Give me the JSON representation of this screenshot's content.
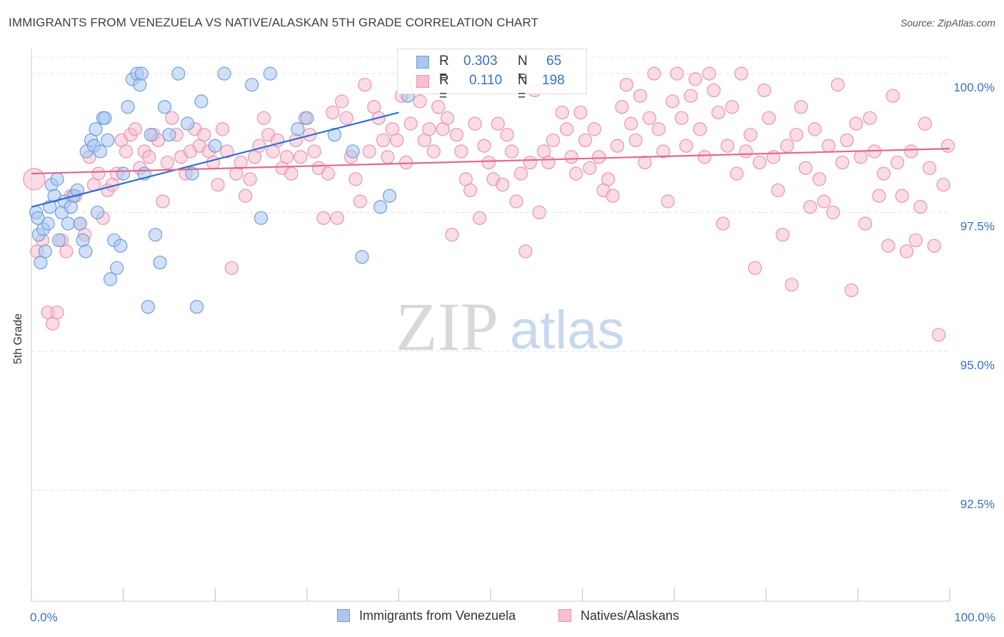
{
  "title": "IMMIGRANTS FROM VENEZUELA VS NATIVE/ALASKAN 5TH GRADE CORRELATION CHART",
  "source": "Source: ZipAtlas.com",
  "watermark": {
    "part1": "ZIP",
    "part2": "atlas"
  },
  "legend": {
    "r_label": "R =",
    "n_label": "N =",
    "rows": [
      {
        "r": "0.303",
        "n": "65"
      },
      {
        "r": "0.110",
        "n": "198"
      }
    ]
  },
  "colors": {
    "blue_fill": "#a9c7ef",
    "blue_stroke": "#6f9ee0",
    "blue_line": "#2f6fd0",
    "pink_fill": "#f6c0d0",
    "pink_stroke": "#ec92b0",
    "pink_line": "#e2698f",
    "tick_text": "#3a6fca"
  },
  "chart_data": {
    "type": "scatter",
    "title": "IMMIGRANTS FROM VENEZUELA VS NATIVE/ALASKAN 5TH GRADE CORRELATION CHART",
    "xlabel": "",
    "ylabel": "5th Grade",
    "xlim": [
      0,
      100
    ],
    "ylim": [
      90.5,
      100.4
    ],
    "x_tick_labels": [
      "0.0%",
      "100.0%"
    ],
    "y_ticks": [
      92.5,
      95.0,
      97.5,
      100.0
    ],
    "y_tick_labels": [
      "92.5%",
      "95.0%",
      "97.5%",
      "100.0%"
    ],
    "grid": true,
    "legend_position": "bottom",
    "series": [
      {
        "name": "Immigrants from Venezuela",
        "color": "#6f9ee0",
        "trend": {
          "x": [
            0,
            40
          ],
          "y": [
            97.6,
            99.3
          ]
        },
        "points": [
          [
            0.5,
            97.5
          ],
          [
            0.8,
            97.1
          ],
          [
            1,
            96.6
          ],
          [
            1.3,
            97.2
          ],
          [
            1.5,
            96.8
          ],
          [
            1.8,
            97.3
          ],
          [
            2,
            97.6
          ],
          [
            2.2,
            98.0
          ],
          [
            2.5,
            97.8
          ],
          [
            2.8,
            98.1
          ],
          [
            3,
            97.0
          ],
          [
            3.3,
            97.5
          ],
          [
            3.6,
            97.7
          ],
          [
            4,
            97.3
          ],
          [
            4.3,
            97.6
          ],
          [
            4.6,
            97.8
          ],
          [
            5,
            97.9
          ],
          [
            5.3,
            97.3
          ],
          [
            5.6,
            97.0
          ],
          [
            5.9,
            96.8
          ],
          [
            6,
            98.6
          ],
          [
            6.5,
            98.8
          ],
          [
            6.8,
            98.7
          ],
          [
            7,
            99.0
          ],
          [
            7.2,
            97.5
          ],
          [
            7.5,
            98.6
          ],
          [
            7.8,
            99.2
          ],
          [
            8,
            99.2
          ],
          [
            8.3,
            98.8
          ],
          [
            8.6,
            96.3
          ],
          [
            9,
            97.0
          ],
          [
            9.3,
            96.5
          ],
          [
            9.7,
            96.9
          ],
          [
            10,
            98.2
          ],
          [
            10.5,
            99.4
          ],
          [
            11,
            99.9
          ],
          [
            11.5,
            100.0
          ],
          [
            11.8,
            99.8
          ],
          [
            12,
            100.0
          ],
          [
            12.3,
            98.2
          ],
          [
            12.7,
            95.8
          ],
          [
            13,
            98.9
          ],
          [
            13.5,
            97.1
          ],
          [
            14,
            96.6
          ],
          [
            14.5,
            99.4
          ],
          [
            15,
            98.9
          ],
          [
            16,
            100.0
          ],
          [
            17,
            99.1
          ],
          [
            17.5,
            98.2
          ],
          [
            18,
            95.8
          ],
          [
            18.5,
            99.5
          ],
          [
            20,
            98.7
          ],
          [
            21,
            100.0
          ],
          [
            24,
            99.8
          ],
          [
            25,
            97.4
          ],
          [
            26,
            100.0
          ],
          [
            29,
            99.0
          ],
          [
            30,
            99.2
          ],
          [
            33,
            98.9
          ],
          [
            35,
            98.6
          ],
          [
            36,
            96.7
          ],
          [
            38,
            97.6
          ],
          [
            39,
            97.8
          ],
          [
            41,
            99.6
          ],
          [
            0.7,
            97.4
          ]
        ]
      },
      {
        "name": "Natives/Alaskans",
        "color": "#ec92b0",
        "trend": {
          "x": [
            0,
            100
          ],
          "y": [
            98.2,
            98.65
          ]
        },
        "points": [
          [
            0.3,
            98.1
          ],
          [
            0.6,
            96.8
          ],
          [
            1.2,
            97.0
          ],
          [
            1.8,
            95.7
          ],
          [
            2.3,
            95.5
          ],
          [
            2.8,
            95.7
          ],
          [
            3.3,
            97.0
          ],
          [
            3.8,
            96.8
          ],
          [
            4.3,
            97.8
          ],
          [
            4.8,
            97.8
          ],
          [
            5.3,
            97.3
          ],
          [
            5.8,
            97.1
          ],
          [
            6.3,
            98.5
          ],
          [
            6.8,
            98.0
          ],
          [
            7.3,
            98.2
          ],
          [
            7.8,
            97.4
          ],
          [
            8.3,
            97.9
          ],
          [
            8.8,
            98.0
          ],
          [
            9.3,
            98.2
          ],
          [
            9.8,
            98.8
          ],
          [
            10.3,
            98.6
          ],
          [
            10.8,
            98.9
          ],
          [
            11.3,
            99.0
          ],
          [
            11.8,
            98.3
          ],
          [
            12.3,
            98.6
          ],
          [
            12.8,
            98.5
          ],
          [
            13.3,
            98.9
          ],
          [
            13.8,
            98.8
          ],
          [
            14.3,
            97.7
          ],
          [
            14.8,
            98.4
          ],
          [
            15.3,
            99.2
          ],
          [
            15.8,
            98.9
          ],
          [
            16.3,
            98.5
          ],
          [
            16.8,
            98.2
          ],
          [
            17.3,
            98.6
          ],
          [
            17.8,
            99.0
          ],
          [
            18.3,
            98.7
          ],
          [
            18.8,
            98.9
          ],
          [
            19.3,
            98.6
          ],
          [
            19.8,
            98.4
          ],
          [
            20.3,
            98.0
          ],
          [
            20.8,
            99.0
          ],
          [
            21.3,
            98.6
          ],
          [
            21.8,
            96.5
          ],
          [
            22.3,
            98.2
          ],
          [
            22.8,
            98.4
          ],
          [
            23.3,
            97.8
          ],
          [
            23.8,
            98.1
          ],
          [
            24.3,
            98.5
          ],
          [
            24.8,
            98.7
          ],
          [
            25.3,
            99.2
          ],
          [
            25.8,
            98.9
          ],
          [
            26.3,
            98.6
          ],
          [
            26.8,
            98.8
          ],
          [
            27.3,
            98.3
          ],
          [
            27.8,
            98.5
          ],
          [
            28.3,
            98.2
          ],
          [
            28.8,
            98.8
          ],
          [
            29.3,
            98.5
          ],
          [
            29.8,
            99.2
          ],
          [
            30.3,
            98.9
          ],
          [
            30.8,
            98.6
          ],
          [
            31.3,
            98.3
          ],
          [
            31.8,
            97.4
          ],
          [
            32.3,
            98.2
          ],
          [
            32.8,
            99.3
          ],
          [
            33.3,
            97.4
          ],
          [
            33.8,
            99.5
          ],
          [
            34.3,
            99.2
          ],
          [
            34.8,
            98.5
          ],
          [
            35.3,
            98.1
          ],
          [
            35.8,
            97.7
          ],
          [
            36.3,
            99.8
          ],
          [
            36.8,
            98.6
          ],
          [
            37.3,
            99.4
          ],
          [
            37.8,
            99.2
          ],
          [
            38.3,
            98.8
          ],
          [
            38.8,
            98.5
          ],
          [
            39.3,
            99.0
          ],
          [
            39.8,
            98.8
          ],
          [
            40.3,
            99.6
          ],
          [
            40.8,
            98.4
          ],
          [
            41.3,
            99.1
          ],
          [
            41.8,
            99.8
          ],
          [
            42.3,
            99.5
          ],
          [
            42.8,
            98.8
          ],
          [
            43.3,
            99.0
          ],
          [
            43.8,
            98.6
          ],
          [
            44.3,
            99.4
          ],
          [
            44.8,
            99.0
          ],
          [
            45.3,
            99.2
          ],
          [
            45.8,
            97.1
          ],
          [
            46.3,
            98.9
          ],
          [
            46.8,
            98.6
          ],
          [
            47.3,
            98.1
          ],
          [
            47.8,
            97.9
          ],
          [
            48.3,
            99.1
          ],
          [
            48.8,
            97.4
          ],
          [
            49.3,
            98.7
          ],
          [
            49.8,
            98.4
          ],
          [
            50.3,
            98.1
          ],
          [
            50.8,
            99.1
          ],
          [
            51.3,
            98.0
          ],
          [
            51.8,
            98.9
          ],
          [
            52.3,
            98.6
          ],
          [
            52.8,
            97.7
          ],
          [
            53.3,
            98.2
          ],
          [
            53.8,
            96.8
          ],
          [
            54.3,
            98.4
          ],
          [
            54.8,
            99.7
          ],
          [
            55.3,
            97.5
          ],
          [
            55.8,
            98.6
          ],
          [
            56.3,
            98.4
          ],
          [
            56.8,
            98.8
          ],
          [
            57.3,
            99.8
          ],
          [
            57.8,
            99.3
          ],
          [
            58.3,
            99.0
          ],
          [
            58.8,
            98.5
          ],
          [
            59.3,
            98.2
          ],
          [
            59.8,
            99.3
          ],
          [
            60.3,
            98.8
          ],
          [
            60.8,
            98.3
          ],
          [
            61.3,
            99.0
          ],
          [
            61.8,
            98.5
          ],
          [
            62.3,
            97.9
          ],
          [
            62.8,
            98.1
          ],
          [
            63.3,
            97.8
          ],
          [
            63.8,
            98.7
          ],
          [
            64.3,
            99.4
          ],
          [
            64.8,
            99.8
          ],
          [
            65.3,
            99.1
          ],
          [
            65.8,
            98.8
          ],
          [
            66.3,
            99.6
          ],
          [
            66.8,
            98.4
          ],
          [
            67.3,
            99.2
          ],
          [
            67.8,
            100.0
          ],
          [
            68.3,
            99.0
          ],
          [
            68.8,
            98.6
          ],
          [
            69.3,
            97.7
          ],
          [
            69.8,
            99.5
          ],
          [
            70.3,
            100.0
          ],
          [
            70.8,
            99.2
          ],
          [
            71.3,
            98.7
          ],
          [
            71.8,
            99.6
          ],
          [
            72.3,
            99.9
          ],
          [
            72.8,
            99.0
          ],
          [
            73.3,
            98.5
          ],
          [
            73.8,
            100.0
          ],
          [
            74.3,
            99.7
          ],
          [
            74.8,
            99.3
          ],
          [
            75.3,
            97.3
          ],
          [
            75.8,
            98.7
          ],
          [
            76.3,
            99.4
          ],
          [
            76.8,
            98.2
          ],
          [
            77.3,
            100.0
          ],
          [
            77.8,
            98.6
          ],
          [
            78.3,
            98.9
          ],
          [
            78.8,
            96.5
          ],
          [
            79.3,
            98.4
          ],
          [
            79.8,
            99.7
          ],
          [
            80.3,
            99.2
          ],
          [
            80.8,
            98.5
          ],
          [
            81.3,
            97.9
          ],
          [
            81.8,
            97.1
          ],
          [
            82.3,
            98.7
          ],
          [
            82.8,
            96.2
          ],
          [
            83.3,
            98.9
          ],
          [
            83.8,
            99.4
          ],
          [
            84.3,
            98.3
          ],
          [
            84.8,
            97.6
          ],
          [
            85.3,
            99.0
          ],
          [
            85.8,
            98.1
          ],
          [
            86.3,
            97.7
          ],
          [
            86.8,
            98.7
          ],
          [
            87.3,
            97.5
          ],
          [
            87.8,
            99.8
          ],
          [
            88.3,
            98.4
          ],
          [
            88.8,
            98.8
          ],
          [
            89.3,
            96.1
          ],
          [
            89.8,
            99.1
          ],
          [
            90.3,
            98.5
          ],
          [
            90.8,
            97.3
          ],
          [
            91.3,
            99.2
          ],
          [
            91.8,
            98.6
          ],
          [
            92.3,
            97.8
          ],
          [
            92.8,
            98.2
          ],
          [
            93.3,
            96.9
          ],
          [
            93.8,
            99.6
          ],
          [
            94.3,
            98.4
          ],
          [
            94.8,
            97.8
          ],
          [
            95.3,
            96.8
          ],
          [
            95.8,
            98.6
          ],
          [
            96.3,
            97.0
          ],
          [
            96.8,
            97.6
          ],
          [
            97.3,
            99.1
          ],
          [
            97.8,
            98.3
          ],
          [
            98.3,
            96.9
          ],
          [
            98.8,
            95.3
          ],
          [
            99.3,
            98.0
          ],
          [
            99.8,
            98.7
          ]
        ]
      }
    ]
  }
}
